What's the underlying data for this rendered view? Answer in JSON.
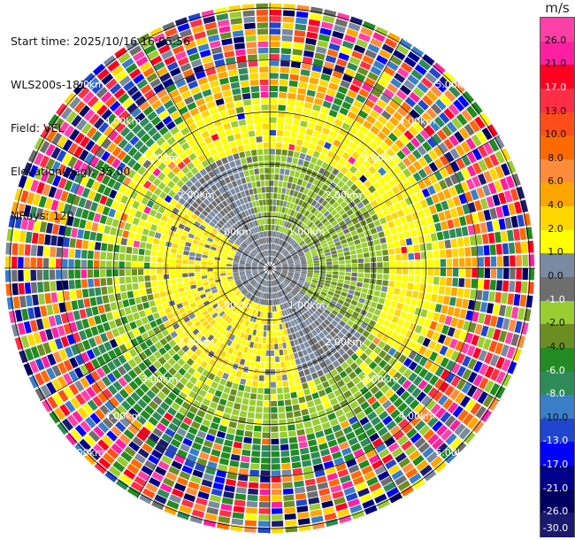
{
  "info": {
    "start_time": "Start time: 2025/10/16 16:05:56",
    "instrument": "WLS200s-181",
    "field": "Field: VEL",
    "elevation": "Elevation(deg): 35.00",
    "nrays": "NRays: 120"
  },
  "colorbar": {
    "unit": "m/s",
    "ticks": [
      "26.0",
      "21.0",
      "17.0",
      "13.0",
      "10.0",
      "8.0",
      "6.0",
      "4.0",
      "2.0",
      "1.0",
      "0.0",
      "-1.0",
      "-2.0",
      "-4.0",
      "-6.0",
      "-8.0",
      "-10.0",
      "-13.0",
      "-17.0",
      "-21.0",
      "-26.0",
      "-30.0"
    ],
    "colors": [
      "#ff3fa8",
      "#ff1fa0",
      "#ff0020",
      "#ff2e45",
      "#ff4d1a",
      "#ff6a00",
      "#ff8c3a",
      "#ffa500",
      "#ffd700",
      "#ffff00",
      "#7a8aa0",
      "#6e6e6e",
      "#9acd32",
      "#6b8e23",
      "#228b22",
      "#2e8b57",
      "#3a7ec8",
      "#2046d0",
      "#0000ff",
      "#00008b",
      "#000060",
      "#1a1a6e"
    ]
  },
  "chart_data": {
    "type": "heatmap",
    "field": "VEL",
    "units": "m/s",
    "elevation_deg": 35.0,
    "nrays": 120,
    "range_rings_km": [
      1.0,
      2.0,
      3.0,
      4.0,
      5.0
    ],
    "range_ring_labels": [
      "1.00km",
      "2.00km",
      "3.00km",
      "4.00km",
      "5.00km"
    ],
    "max_range_km": 5.1,
    "velocity_scale": [
      26.0,
      21.0,
      17.0,
      13.0,
      10.0,
      8.0,
      6.0,
      4.0,
      2.0,
      1.0,
      0.0,
      -1.0,
      -2.0,
      -4.0,
      -6.0,
      -8.0,
      -10.0,
      -13.0,
      -17.0,
      -21.0,
      -26.0,
      -30.0
    ],
    "grid": true
  }
}
